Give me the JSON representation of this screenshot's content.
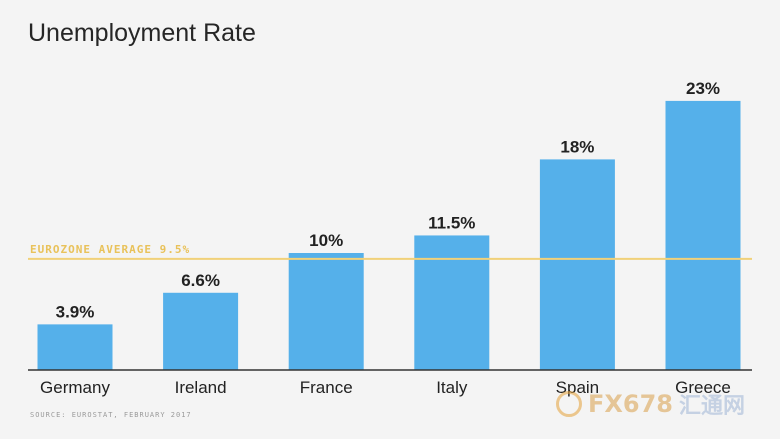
{
  "chart_data": {
    "type": "bar",
    "title": "Unemployment Rate",
    "categories": [
      "Germany",
      "Ireland",
      "France",
      "Italy",
      "Spain",
      "Greece"
    ],
    "values": [
      3.9,
      6.6,
      10,
      11.5,
      18,
      23
    ],
    "value_labels": [
      "3.9%",
      "6.6%",
      "10%",
      "11.5%",
      "18%",
      "23%"
    ],
    "ylim": [
      0,
      25
    ],
    "grid": false,
    "reference_line": {
      "label": "EUROZONE AVERAGE 9.5%",
      "value": 9.5
    },
    "source": "SOURCE: EUROSTAT, FEBRUARY 2017",
    "colors": {
      "bar": "#55b0ea",
      "reference_line": "#f1d179",
      "reference_label": "#e9c25a",
      "axis": "#333333",
      "text": "#222222"
    }
  },
  "watermark": {
    "brand": "FX678",
    "chinese": "汇通网"
  }
}
